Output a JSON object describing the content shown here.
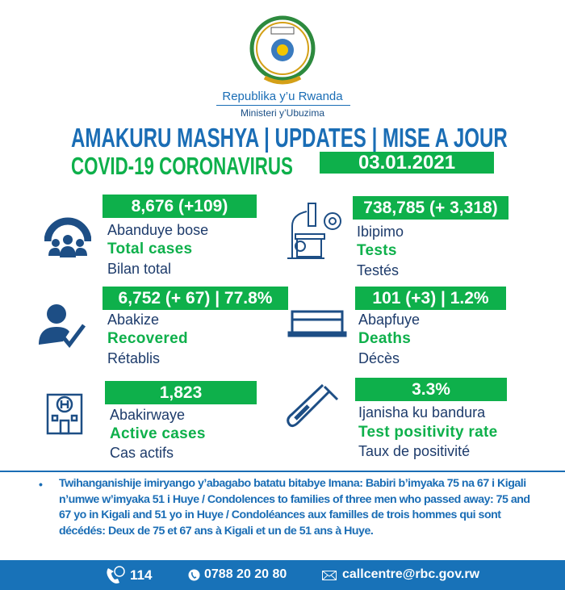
{
  "header": {
    "republic": "Republika y’u Rwanda",
    "ministry": "Ministeri y’Ubuzima",
    "title": "AMAKURU MASHYA | UPDATES | MISE A JOUR",
    "subtitle": "COVID-19 CORONAVIRUS",
    "date": "03.01.2021"
  },
  "stats": [
    {
      "value": "8,676 (+109)",
      "rw": "Abanduye bose",
      "en": "Total cases",
      "fr": "Bilan total",
      "icon": "virus-people-icon"
    },
    {
      "value": "738,785 (+ 3,318)",
      "rw": "Ibipimo",
      "en": "Tests",
      "fr": "Testés",
      "icon": "microscope-icon"
    },
    {
      "value": "6,752 (+ 67) | 77.8%",
      "rw": "Abakize",
      "en": "Recovered",
      "fr": "Rétablis",
      "icon": "person-check-icon"
    },
    {
      "value": "101 (+3) | 1.2%",
      "rw": "Abapfuye",
      "en": "Deaths",
      "fr": "Décès",
      "icon": "coffin-icon"
    },
    {
      "value": "1,823",
      "rw": "Abakirwaye",
      "en": "Active cases",
      "fr": "Cas actifs",
      "icon": "hospital-icon"
    },
    {
      "value": "3.3%",
      "rw": "Ijanisha ku bandura",
      "en": "Test positivity rate",
      "fr": "Taux de positivité",
      "icon": "test-tube-icon"
    }
  ],
  "note": "Twihanganishije imiryango y’abagabo batatu bitabye Imana: Babiri b’imyaka 75 na 67 i Kigali n’umwe w’imyaka 51 i Huye / Condolences to families of three men who passed away: 75 and 67 yo in Kigali and 51 yo in Huye / Condoléances aux familles de trois hommes qui sont décédés: Deux de 75 et 67 ans à Kigali et un de 51 ans à Huye.",
  "footer": {
    "hotline": "114",
    "whatsapp": "0788 20 20 80",
    "email": "callcentre@rbc.gov.rw"
  },
  "colors": {
    "blue": "#1a6db5",
    "green": "#0eb04b",
    "navy": "#1d4e85"
  }
}
